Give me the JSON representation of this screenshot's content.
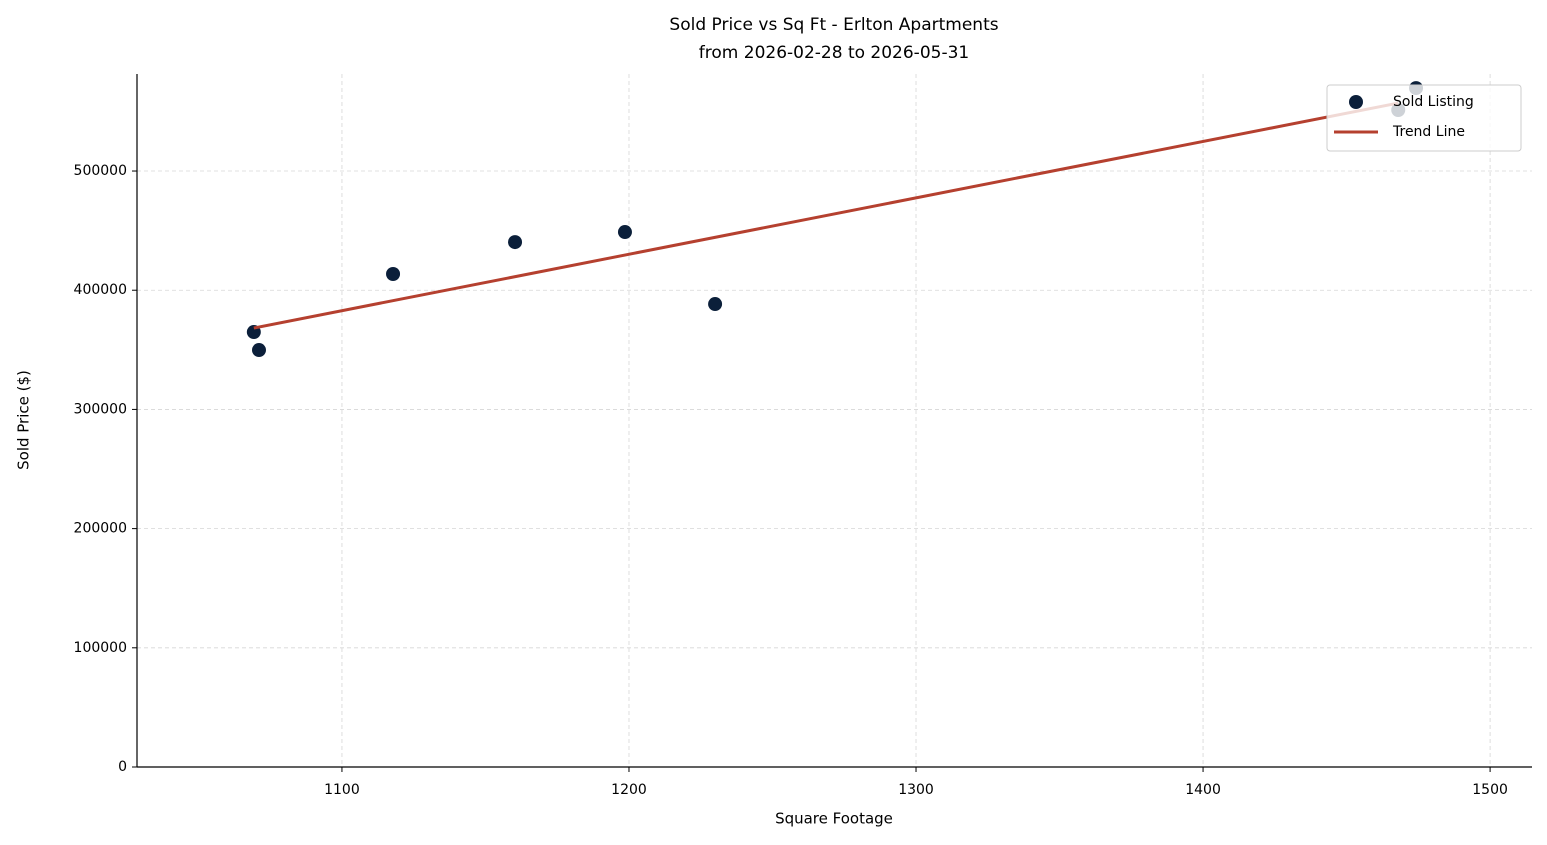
{
  "chart_data": {
    "type": "scatter",
    "title": "Sold Price vs Sq Ft - Erlton Apartments",
    "subtitle": "from 2026-02-28 to 2026-05-31",
    "x_label": "Square Footage",
    "y_label": "Sold Price ($)",
    "xlim": [
      1028.6,
      1514.6
    ],
    "ylim": [
      0,
      581400
    ],
    "xticks": [
      1100,
      1200,
      1300,
      1400,
      1500
    ],
    "yticks": [
      0,
      100000,
      200000,
      300000,
      400000,
      500000
    ],
    "grid": true,
    "legend": "upper right",
    "series": [
      {
        "name": "Sold Listing",
        "type": "scatter",
        "color": "#0b1f3a",
        "x": [
          1069.3,
          1071.1,
          1117.8,
          1160.3,
          1198.6,
          1230.0,
          1468.0,
          1474.2
        ],
        "values": [
          364900,
          349800,
          413600,
          440400,
          448800,
          388400,
          551200,
          569600
        ]
      },
      {
        "name": "Trend Line",
        "type": "line",
        "color": "#b5402f",
        "x": [
          1069.3,
          1468.0
        ],
        "values": [
          368300,
          557000
        ]
      }
    ]
  }
}
